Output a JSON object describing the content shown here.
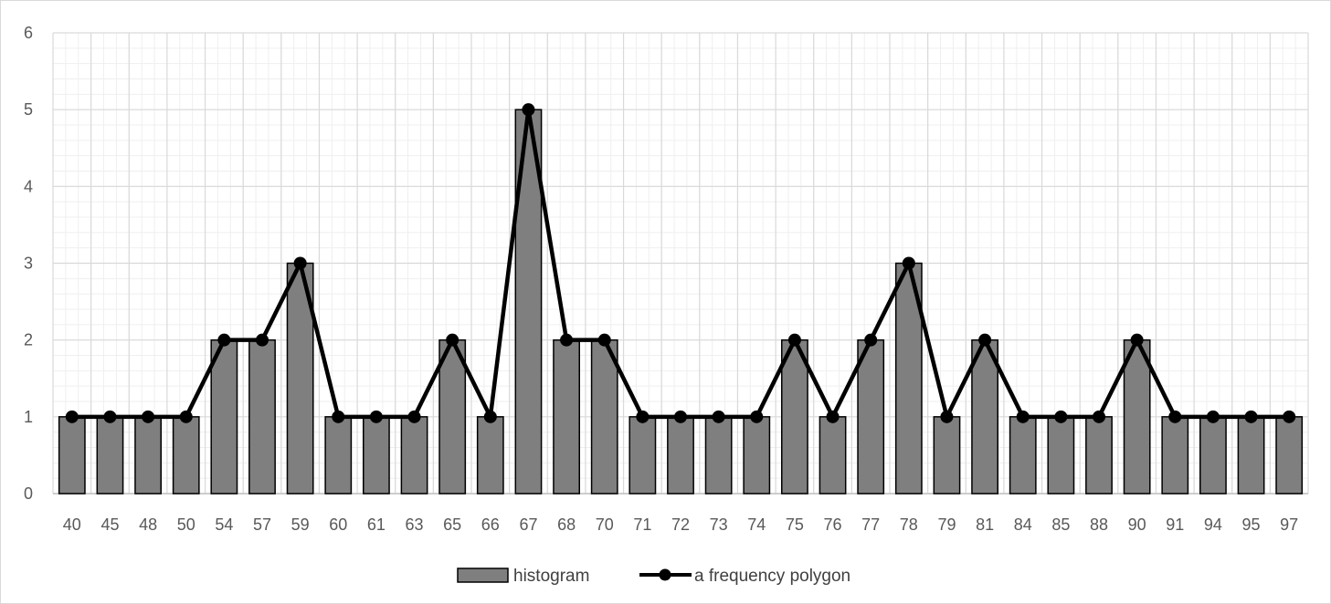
{
  "chart_data": {
    "type": "bar",
    "title": "",
    "xlabel": "",
    "ylabel": "",
    "categories": [
      "40",
      "45",
      "48",
      "50",
      "54",
      "57",
      "59",
      "60",
      "61",
      "63",
      "65",
      "66",
      "67",
      "68",
      "70",
      "71",
      "72",
      "73",
      "74",
      "75",
      "76",
      "77",
      "78",
      "79",
      "81",
      "84",
      "85",
      "88",
      "90",
      "91",
      "94",
      "95",
      "97"
    ],
    "series": [
      {
        "name": "histogram",
        "kind": "bar",
        "values": [
          1,
          1,
          1,
          1,
          2,
          2,
          3,
          1,
          1,
          1,
          2,
          1,
          5,
          2,
          2,
          1,
          1,
          1,
          1,
          2,
          1,
          2,
          3,
          1,
          2,
          1,
          1,
          1,
          2,
          1,
          1,
          1,
          1
        ]
      },
      {
        "name": "a frequency polygon",
        "kind": "line",
        "values": [
          1,
          1,
          1,
          1,
          2,
          2,
          3,
          1,
          1,
          1,
          2,
          1,
          5,
          2,
          2,
          1,
          1,
          1,
          1,
          2,
          1,
          2,
          3,
          1,
          2,
          1,
          1,
          1,
          2,
          1,
          1,
          1,
          1
        ]
      }
    ],
    "ylim": [
      0,
      6
    ],
    "yticks": [
      "0",
      "1",
      "2",
      "3",
      "4",
      "5",
      "6"
    ],
    "grid": true,
    "minor_grid": true,
    "legend_position": "bottom",
    "colors": {
      "bar_fill": "#7f7f7f",
      "bar_stroke": "#000000",
      "line": "#000000",
      "marker": "#000000",
      "grid_major": "#d9d9d9",
      "grid_minor": "#efefef"
    }
  }
}
